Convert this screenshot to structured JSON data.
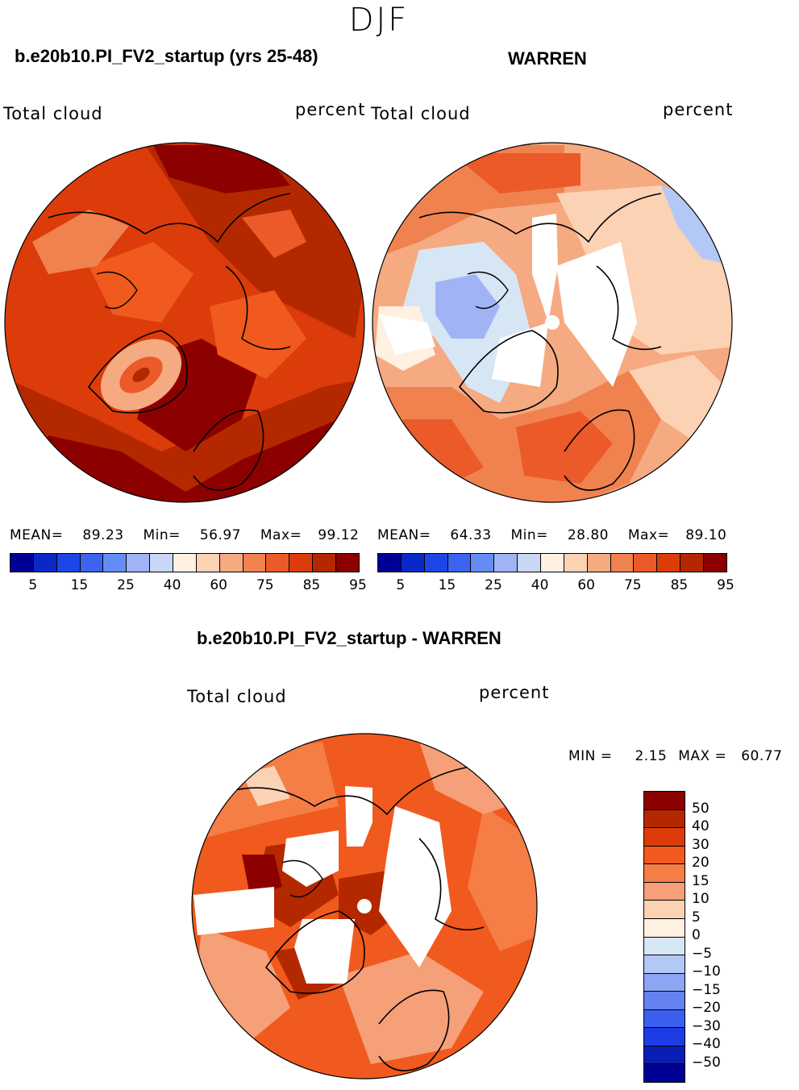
{
  "figure": {
    "season": "DJF",
    "colors": {
      "abs_scale": [
        "#000096",
        "#0a28c8",
        "#1e46e6",
        "#3c64f0",
        "#648cf5",
        "#a0b4f5",
        "#c8d7f5",
        "#fff0e1",
        "#fcd2b4",
        "#f5aa82",
        "#f08250",
        "#eb5a28",
        "#dc3c0a",
        "#b42800",
        "#8c0000"
      ],
      "diff_scale": [
        "#8c0000",
        "#b42800",
        "#dc3c0a",
        "#f05a1e",
        "#f57d46",
        "#f5a078",
        "#fcd2b4",
        "#fff0e1",
        "#d7e6f5",
        "#b4c8f5",
        "#8ca5f5",
        "#6482f0",
        "#3c5ff0",
        "#1e3ce6",
        "#0a1eb4",
        "#000096"
      ]
    },
    "panels": {
      "left": {
        "title": "b.e20b10.PI_FV2_startup (yrs 25-48)",
        "variable": "Total cloud",
        "units": "percent",
        "stats": {
          "mean_label": "MEAN=",
          "mean": "89.23",
          "min_label": "Min=",
          "min": "56.97",
          "max_label": "Max=",
          "max": "99.12"
        },
        "colorbar_ticks": [
          "5",
          "15",
          "25",
          "40",
          "60",
          "75",
          "85",
          "95"
        ]
      },
      "right": {
        "title": "WARREN",
        "variable": "Total cloud",
        "units": "percent",
        "stats": {
          "mean_label": "MEAN=",
          "mean": "64.33",
          "min_label": "Min=",
          "min": "28.80",
          "max_label": "Max=",
          "max": "89.10"
        },
        "colorbar_ticks": [
          "5",
          "15",
          "25",
          "40",
          "60",
          "75",
          "85",
          "95"
        ]
      },
      "diff": {
        "title": "b.e20b10.PI_FV2_startup - WARREN",
        "variable": "Total cloud",
        "units": "percent",
        "stats": {
          "min_label": "MIN =",
          "min": "2.15",
          "max_label": "MAX =",
          "max": "60.77"
        },
        "colorbar_ticks": [
          "50",
          "40",
          "30",
          "20",
          "15",
          "10",
          "5",
          "0",
          "−5",
          "−10",
          "−15",
          "−20",
          "−30",
          "−40",
          "−50"
        ]
      }
    }
  }
}
